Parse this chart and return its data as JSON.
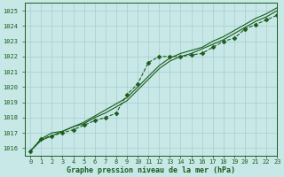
{
  "title": "Graphe pression niveau de la mer (hPa)",
  "bg_color": "#c8e8e8",
  "grid_color": "#a8cccc",
  "line_color": "#1a5c1a",
  "x_labels": [
    "0",
    "1",
    "2",
    "3",
    "4",
    "5",
    "6",
    "7",
    "8",
    "9",
    "10",
    "11",
    "12",
    "13",
    "14",
    "15",
    "16",
    "17",
    "18",
    "19",
    "20",
    "21",
    "22",
    "23"
  ],
  "xlim": [
    -0.5,
    23
  ],
  "ylim": [
    1015.5,
    1025.5
  ],
  "yticks": [
    1016,
    1017,
    1018,
    1019,
    1020,
    1021,
    1022,
    1023,
    1024,
    1025
  ],
  "series": [
    {
      "values": [
        1015.8,
        1016.6,
        1016.8,
        1017.0,
        1017.2,
        1017.5,
        1017.8,
        1018.0,
        1018.3,
        1019.5,
        1020.2,
        1021.6,
        1022.0,
        1022.0,
        1022.0,
        1022.1,
        1022.2,
        1022.6,
        1023.0,
        1023.2,
        1023.8,
        1024.1,
        1024.4,
        1024.7
      ],
      "marker": "D",
      "markersize": 2.5,
      "linewidth": 0.8,
      "linestyle": "--"
    },
    {
      "values": [
        1015.8,
        1016.6,
        1017.0,
        1017.1,
        1017.4,
        1017.6,
        1018.0,
        1018.3,
        1018.7,
        1019.1,
        1019.8,
        1020.5,
        1021.2,
        1021.7,
        1022.0,
        1022.2,
        1022.5,
        1022.8,
        1023.1,
        1023.5,
        1023.9,
        1024.3,
        1024.6,
        1025.0
      ],
      "marker": "None",
      "markersize": 0,
      "linewidth": 0.8,
      "linestyle": "-"
    },
    {
      "values": [
        1015.8,
        1016.5,
        1016.8,
        1017.1,
        1017.4,
        1017.7,
        1018.1,
        1018.5,
        1018.9,
        1019.3,
        1020.0,
        1020.7,
        1021.4,
        1021.9,
        1022.2,
        1022.4,
        1022.6,
        1023.0,
        1023.3,
        1023.7,
        1024.1,
        1024.5,
        1024.8,
        1025.2
      ],
      "marker": "None",
      "markersize": 0,
      "linewidth": 0.8,
      "linestyle": "-"
    }
  ],
  "title_fontsize": 6,
  "tick_fontsize": 5,
  "figsize": [
    3.2,
    2.0
  ],
  "dpi": 100
}
